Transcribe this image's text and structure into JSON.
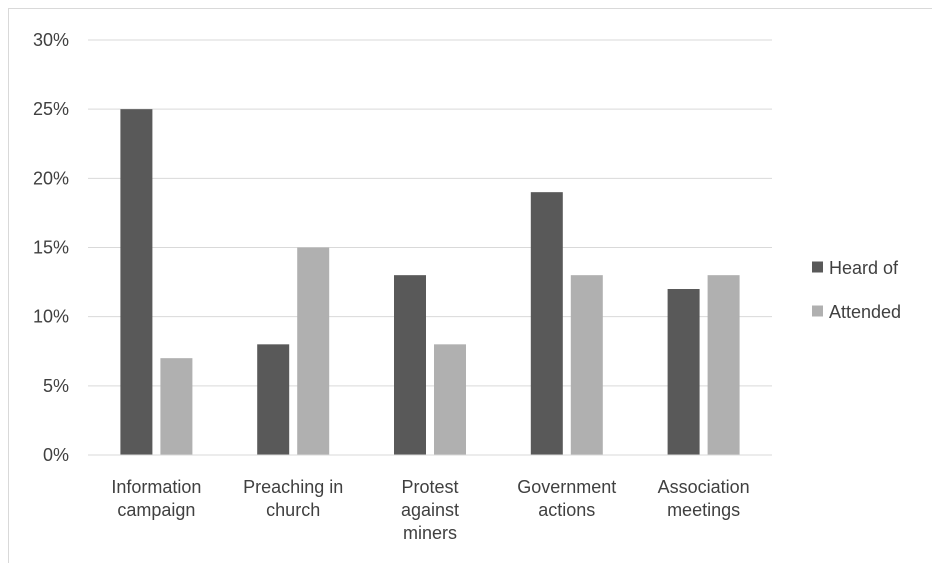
{
  "chart_data": {
    "type": "bar",
    "title": "",
    "xlabel": "",
    "ylabel": "",
    "ylim": [
      0,
      30
    ],
    "y_ticks": [
      "0%",
      "5%",
      "10%",
      "15%",
      "20%",
      "25%",
      "30%"
    ],
    "y_tick_values": [
      0,
      5,
      10,
      15,
      20,
      25,
      30
    ],
    "y_unit": "%",
    "grid": true,
    "legend_position": "right",
    "categories": [
      [
        "Information",
        "campaign"
      ],
      [
        "Preaching in",
        "church"
      ],
      [
        "Protest",
        "against",
        "miners"
      ],
      [
        "Government",
        "actions"
      ],
      [
        "Association",
        "meetings"
      ]
    ],
    "series": [
      {
        "name": "Heard of",
        "color": "#595959",
        "values": [
          25,
          8,
          13,
          19,
          12
        ]
      },
      {
        "name": "Attended",
        "color": "#b0b0b0",
        "values": [
          7,
          15,
          8,
          13,
          13
        ]
      }
    ],
    "colors": {
      "grid": "#d9d9d9",
      "axis": "#d9d9d9",
      "text": "#404040"
    }
  }
}
